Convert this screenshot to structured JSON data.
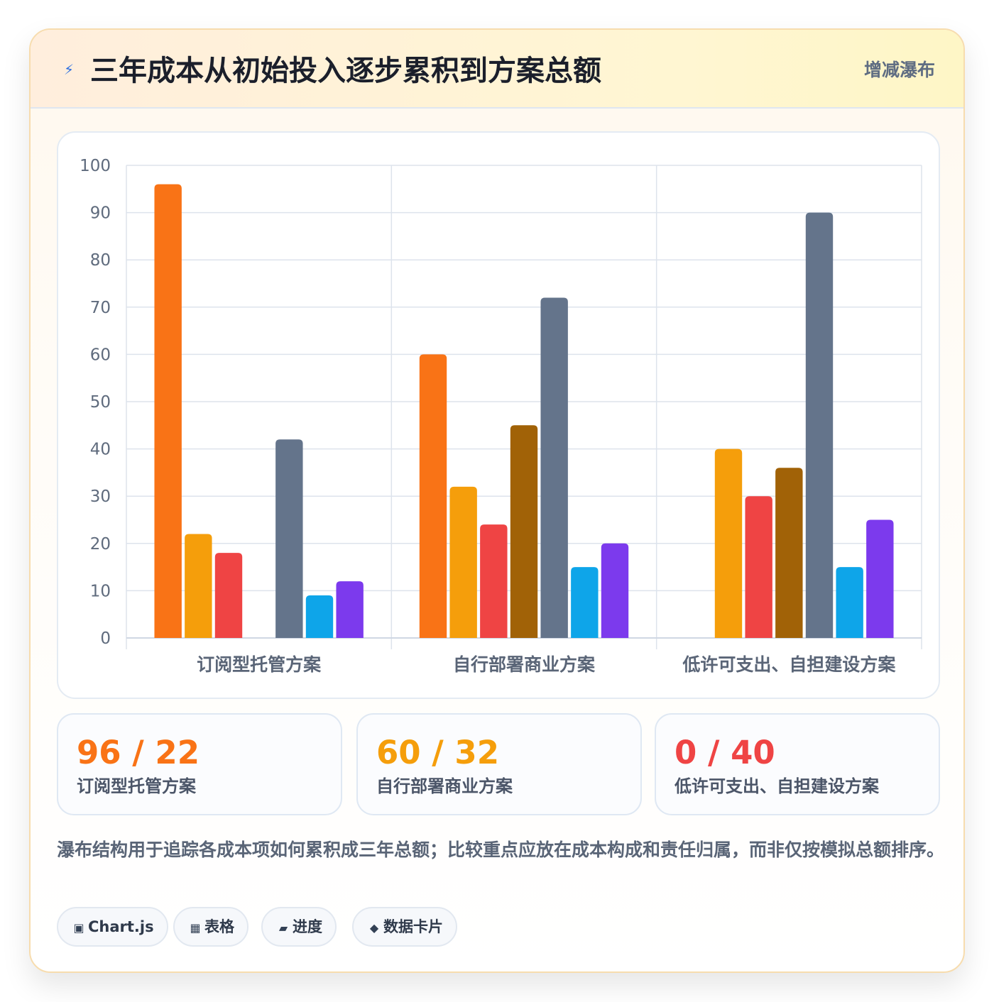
{
  "header": {
    "icon": "lightning-icon",
    "title": "三年成本从初始投入逐步累积到方案总额",
    "badge": "增减瀑布"
  },
  "chart_data": {
    "type": "bar",
    "categories": [
      "订阅型托管方案",
      "自行部署商业方案",
      "低许可支出、自担建设方案"
    ],
    "series": [
      {
        "values": [
          96,
          60,
          0
        ],
        "color": "#f97316"
      },
      {
        "values": [
          22,
          32,
          40
        ],
        "color": "#f59e0b"
      },
      {
        "values": [
          18,
          24,
          30
        ],
        "color": "#ef4444"
      },
      {
        "values": [
          0,
          45,
          36
        ],
        "color": "#a16207"
      },
      {
        "values": [
          42,
          72,
          90
        ],
        "color": "#64748b"
      },
      {
        "values": [
          9,
          15,
          15
        ],
        "color": "#0ea5e9"
      },
      {
        "values": [
          12,
          20,
          25
        ],
        "color": "#7c3aed"
      }
    ],
    "ylim": [
      0,
      100
    ],
    "yticks": [
      "0",
      "10",
      "20",
      "30",
      "40",
      "50",
      "60",
      "70",
      "80",
      "90",
      "100"
    ],
    "grid": true,
    "legend": "none"
  },
  "kpis": [
    {
      "value": "96 / 22",
      "label": "订阅型托管方案",
      "color": "#f97316"
    },
    {
      "value": "60 / 32",
      "label": "自行部署商业方案",
      "color": "#f59e0b"
    },
    {
      "value": "0 / 40",
      "label": "低许可支出、自担建设方案",
      "color": "#ef4444"
    }
  ],
  "note": "瀑布结构用于追踪各成本项如何累积成三年总额；比较重点应放在成本构成和责任归属，而非仅按模拟总额排序。",
  "tags": [
    {
      "icon": "chart-icon",
      "glyph": "▣",
      "label": "Chart.js"
    },
    {
      "icon": "table-icon",
      "glyph": "▦",
      "label": "表格"
    },
    {
      "icon": "progress-icon",
      "glyph": "▰",
      "label": "进度"
    },
    {
      "icon": "data-card-icon",
      "glyph": "◆",
      "label": "数据卡片"
    }
  ]
}
